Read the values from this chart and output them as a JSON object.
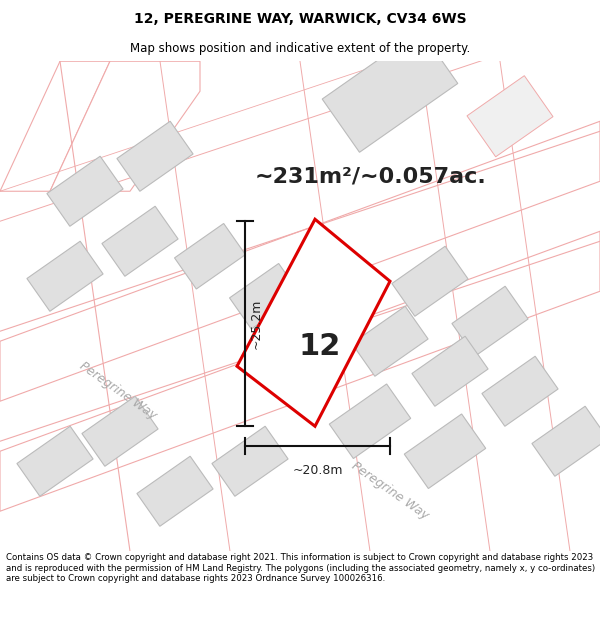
{
  "title_line1": "12, PEREGRINE WAY, WARWICK, CV34 6WS",
  "title_line2": "Map shows position and indicative extent of the property.",
  "area_text": "~231m²/~0.057ac.",
  "number_label": "12",
  "dim_width": "~20.8m",
  "dim_height": "~25.2m",
  "road_label_1": "Peregrine Way",
  "road_label_2": "Peregrine Way",
  "footer_text": "Contains OS data © Crown copyright and database right 2021. This information is subject to Crown copyright and database rights 2023 and is reproduced with the permission of HM Land Registry. The polygons (including the associated geometry, namely x, y co-ordinates) are subject to Crown copyright and database rights 2023 Ordnance Survey 100026316.",
  "map_bg": "#ffffff",
  "building_fill": "#e0e0e0",
  "building_edge": "#bbbbbb",
  "road_line_color": "#f0aaaa",
  "highlight_color": "#dd0000",
  "dim_line_color": "#111111",
  "text_dark": "#222222",
  "text_gray": "#aaaaaa"
}
